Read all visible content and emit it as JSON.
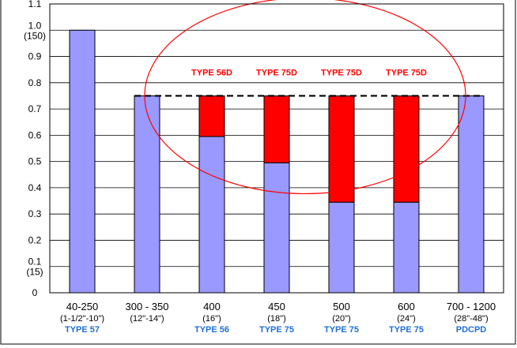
{
  "chart_data": {
    "type": "bar",
    "stacked": true,
    "title": "",
    "xlabel": "",
    "ylabel": "",
    "ylim": [
      0,
      1.1
    ],
    "y_ticks": [
      {
        "value": 0,
        "label": "0"
      },
      {
        "value": 0.1,
        "label": "0.1",
        "sub": "(15)"
      },
      {
        "value": 0.2,
        "label": "0.2"
      },
      {
        "value": 0.3,
        "label": "0.3"
      },
      {
        "value": 0.4,
        "label": "0.4"
      },
      {
        "value": 0.5,
        "label": "0.5"
      },
      {
        "value": 0.6,
        "label": "0.6"
      },
      {
        "value": 0.7,
        "label": "0.7"
      },
      {
        "value": 0.8,
        "label": "0.8"
      },
      {
        "value": 0.9,
        "label": "0.9"
      },
      {
        "value": 1.0,
        "label": "1.0",
        "sub": "(150)"
      },
      {
        "value": 1.1,
        "label": "1.1"
      }
    ],
    "grid": true,
    "categories": [
      {
        "range": "40-250",
        "inch": "(1-1/2\"-10\")",
        "type": "TYPE 57"
      },
      {
        "range": "300 - 350",
        "inch": "(12\"-14\")",
        "type": ""
      },
      {
        "range": "400",
        "inch": "(16\")",
        "type": "TYPE 56"
      },
      {
        "range": "450",
        "inch": "(18\")",
        "type": "TYPE 75"
      },
      {
        "range": "500",
        "inch": "(20\")",
        "type": "TYPE 75"
      },
      {
        "range": "600",
        "inch": "(24\")",
        "type": "TYPE 75"
      },
      {
        "range": "700 - 1200",
        "inch": "(28\"-48\")",
        "type": "PDCPD"
      }
    ],
    "series": [
      {
        "key": "base",
        "values": [
          1.0,
          0.75,
          0.595,
          0.495,
          0.345,
          0.345,
          0.75
        ]
      },
      {
        "key": "added",
        "values": [
          0,
          0,
          0.155,
          0.255,
          0.405,
          0.405,
          0
        ]
      }
    ],
    "reference_line": {
      "value": 0.75,
      "style": "dashed"
    },
    "annotations": [
      "TYPE 56D",
      "TYPE 75D",
      "TYPE 75D",
      "TYPE 75D"
    ],
    "colors": {
      "base": "#9999FF",
      "added": "#FF0000",
      "annotation": "#FF0000",
      "type_label": "#1E6FD9",
      "ellipse": "#FF0000",
      "bar_stroke": "#000000"
    }
  }
}
